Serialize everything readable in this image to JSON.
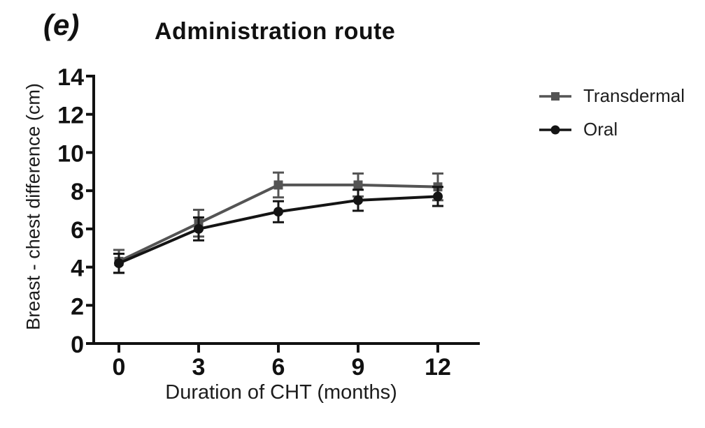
{
  "figure": {
    "panel_label": "(e)",
    "title": "Administration route"
  },
  "chart_data": {
    "type": "line",
    "title": "Administration route",
    "xlabel": "Duration of CHT (months)",
    "ylabel": "Breast - chest difference (cm)",
    "x": [
      0,
      3,
      6,
      9,
      12
    ],
    "xtick_labels": [
      "0",
      "3",
      "6",
      "9",
      "12"
    ],
    "yticks": [
      0,
      2,
      4,
      6,
      8,
      10,
      12,
      14
    ],
    "ylim": [
      0,
      14
    ],
    "grid": false,
    "error_bars": true,
    "legend_position": "right",
    "series": [
      {
        "name": "Transdermal",
        "marker": "square",
        "color": "#545454",
        "values": [
          4.3,
          6.3,
          8.3,
          8.3,
          8.2
        ],
        "errors": [
          0.6,
          0.7,
          0.65,
          0.6,
          0.7
        ]
      },
      {
        "name": "Oral",
        "marker": "circle",
        "color": "#141414",
        "values": [
          4.2,
          6.0,
          6.9,
          7.5,
          7.7
        ],
        "errors": [
          0.5,
          0.6,
          0.55,
          0.55,
          0.5
        ]
      }
    ]
  }
}
